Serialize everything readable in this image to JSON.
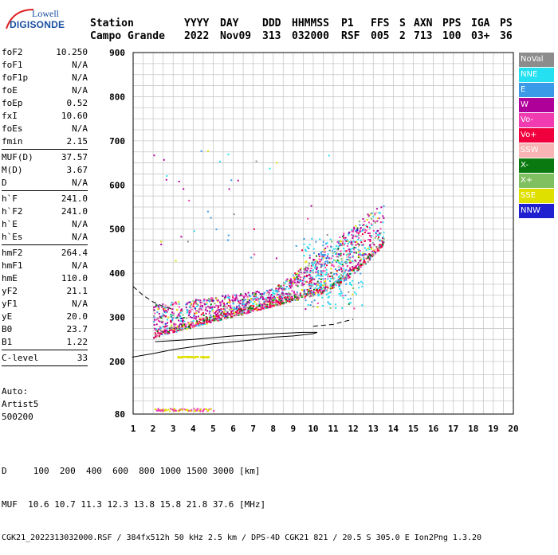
{
  "logo": {
    "line1": "Lowell",
    "line2": "DIGISONDE"
  },
  "header": {
    "labels": [
      "Station",
      "YYYY",
      "DAY",
      "DDD",
      "HHMMSS",
      "P1",
      "FFS",
      "S",
      "AXN",
      "PPS",
      "IGA",
      "PS"
    ],
    "values": [
      "Campo Grande",
      "2022",
      "Nov09",
      "313",
      "032000",
      "RSF",
      "005",
      "2",
      "713",
      "100",
      "03+",
      "36"
    ]
  },
  "params": {
    "group1": [
      {
        "k": "foF2",
        "v": "10.250"
      },
      {
        "k": "foF1",
        "v": "N/A"
      },
      {
        "k": "foF1p",
        "v": "N/A"
      },
      {
        "k": "foE",
        "v": "N/A"
      },
      {
        "k": "foEp",
        "v": "0.52"
      },
      {
        "k": "fxI",
        "v": "10.60"
      },
      {
        "k": "foEs",
        "v": "N/A"
      },
      {
        "k": "fmin",
        "v": "2.15"
      }
    ],
    "group2": [
      {
        "k": "MUF(D)",
        "v": "37.57"
      },
      {
        "k": "M(D)",
        "v": "3.67"
      },
      {
        "k": "D",
        "v": "N/A"
      }
    ],
    "group3": [
      {
        "k": "h`F",
        "v": "241.0"
      },
      {
        "k": "h`F2",
        "v": "241.0"
      },
      {
        "k": "h`E",
        "v": "N/A"
      },
      {
        "k": "h`Es",
        "v": "N/A"
      }
    ],
    "group4": [
      {
        "k": "hmF2",
        "v": "264.4"
      },
      {
        "k": "hmF1",
        "v": "N/A"
      },
      {
        "k": "hmE",
        "v": "110.0"
      },
      {
        "k": "yF2",
        "v": "21.1"
      },
      {
        "k": "yF1",
        "v": "N/A"
      },
      {
        "k": "yE",
        "v": "20.0"
      },
      {
        "k": "B0",
        "v": "23.7"
      },
      {
        "k": "B1",
        "v": "1.22"
      }
    ],
    "group5": [
      {
        "k": "C-level",
        "v": "33"
      }
    ]
  },
  "auto": {
    "line1": "Auto:",
    "line2": "Artist5",
    "line3": "500200"
  },
  "legend": [
    {
      "label": "NoVal",
      "bg": "#8c8c8c",
      "fg": "#ffffff"
    },
    {
      "label": "NNE",
      "bg": "#25e0f0",
      "fg": "#ffffff"
    },
    {
      "label": "E",
      "bg": "#3a9ae8",
      "fg": "#ffffff"
    },
    {
      "label": "W",
      "bg": "#b0009a",
      "fg": "#ffffff"
    },
    {
      "label": "Vo-",
      "bg": "#f03cb0",
      "fg": "#ffffff"
    },
    {
      "label": "Vo+",
      "bg": "#f0003c",
      "fg": "#ffffff"
    },
    {
      "label": "SSW",
      "bg": "#f8b4b4",
      "fg": "#ffffff"
    },
    {
      "label": "X-",
      "bg": "#0a7a10",
      "fg": "#ffffff"
    },
    {
      "label": "X+",
      "bg": "#80c060",
      "fg": "#ffffff"
    },
    {
      "label": "SSE",
      "bg": "#e0e000",
      "fg": "#ffffff"
    },
    {
      "label": "NNW",
      "bg": "#2020d0",
      "fg": "#ffffff"
    }
  ],
  "chart_data": {
    "type": "scatter",
    "x_ticks": [
      "1",
      "2",
      "3",
      "4",
      "5",
      "6",
      "7",
      "8",
      "9",
      "10",
      "11",
      "12",
      "13",
      "14",
      "15",
      "16",
      "17",
      "18",
      "19",
      "20"
    ],
    "y_ticks": [
      "900",
      "800",
      "700",
      "600",
      "500",
      "400",
      "300",
      "200",
      "80"
    ],
    "xlim": [
      1,
      20
    ],
    "ylim": [
      80,
      900
    ],
    "grid": true
  },
  "footer": {
    "line1": "D     100  200  400  600  800 1000 1500 3000 [km]",
    "line2": "MUF  10.6 10.7 11.3 12.3 13.8 15.8 21.8 37.6 [MHz]",
    "line3": "CGK21_2022313032000.RSF / 384fx512h 50 kHz 2.5 km / DPS-4D CGK21 821 / 20.5 S 305.0 E Ion2Png 1.3.20"
  }
}
